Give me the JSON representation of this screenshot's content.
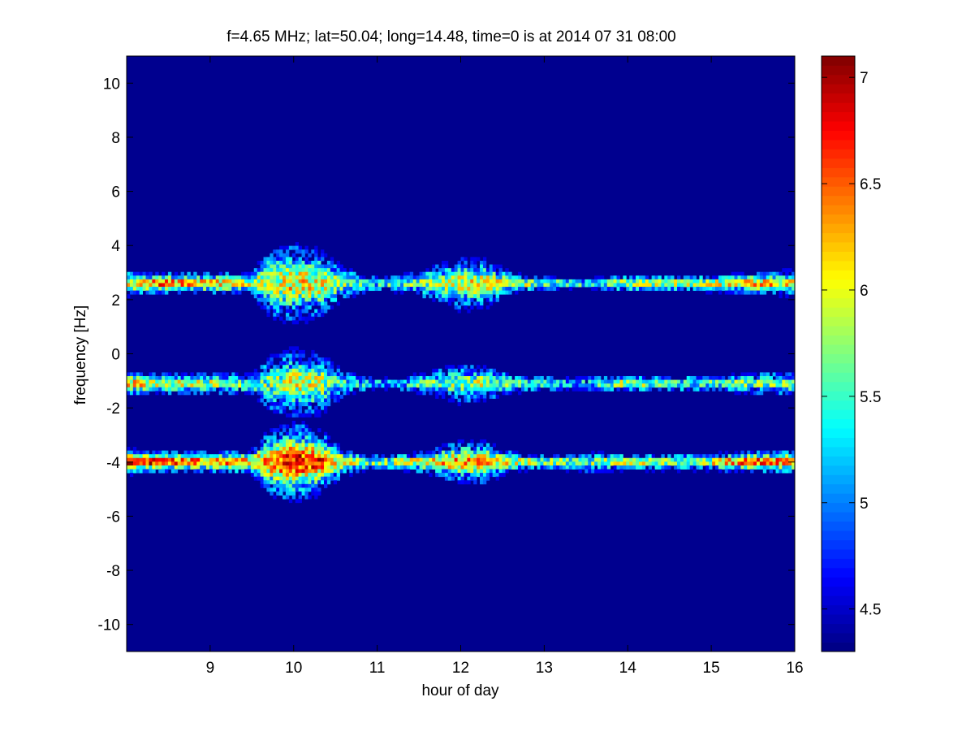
{
  "chart_data": {
    "type": "heatmap",
    "title": "f=4.65 MHz;  lat=50.04; long=14.48, time=0 is at 2014 07 31 08:00",
    "xlabel": "hour of day",
    "ylabel": "frequency [Hz]",
    "xlim": [
      8,
      16
    ],
    "ylim": [
      -11,
      11
    ],
    "x_ticks": [
      9,
      10,
      11,
      12,
      13,
      14,
      15,
      16
    ],
    "y_ticks": [
      10,
      8,
      6,
      4,
      2,
      0,
      -2,
      -4,
      -6,
      -8,
      -10
    ],
    "colorbar": {
      "colormap": "jet",
      "range": [
        4.3,
        7.1
      ],
      "ticks": [
        7,
        6.5,
        6,
        5.5,
        5,
        4.5
      ]
    },
    "grid": false,
    "background_value": 4.45,
    "bands": [
      {
        "center_freq": 2.6,
        "profile": [
          [
            8.0,
            6.2,
            0.35
          ],
          [
            8.5,
            6.5,
            0.3
          ],
          [
            9.0,
            6.3,
            0.3
          ],
          [
            9.5,
            6.0,
            0.3
          ],
          [
            9.7,
            5.8,
            1.0
          ],
          [
            10.0,
            6.1,
            1.1
          ],
          [
            10.3,
            6.0,
            1.0
          ],
          [
            10.6,
            5.6,
            0.5
          ],
          [
            11.0,
            5.3,
            0.2
          ],
          [
            11.5,
            5.7,
            0.35
          ],
          [
            12.0,
            5.9,
            0.8
          ],
          [
            12.3,
            6.0,
            0.7
          ],
          [
            12.6,
            5.8,
            0.3
          ],
          [
            13.0,
            5.7,
            0.2
          ],
          [
            13.5,
            5.4,
            0.15
          ],
          [
            14.0,
            5.9,
            0.25
          ],
          [
            14.5,
            5.8,
            0.25
          ],
          [
            15.0,
            5.9,
            0.25
          ],
          [
            15.5,
            6.3,
            0.3
          ],
          [
            16.0,
            6.0,
            0.4
          ]
        ]
      },
      {
        "center_freq": -1.1,
        "profile": [
          [
            8.0,
            6.2,
            0.35
          ],
          [
            8.5,
            5.9,
            0.3
          ],
          [
            9.0,
            5.8,
            0.3
          ],
          [
            9.5,
            5.6,
            0.3
          ],
          [
            9.7,
            5.6,
            0.8
          ],
          [
            10.0,
            5.9,
            1.0
          ],
          [
            10.3,
            5.9,
            0.9
          ],
          [
            10.6,
            5.4,
            0.4
          ],
          [
            11.0,
            5.2,
            0.15
          ],
          [
            11.5,
            5.4,
            0.3
          ],
          [
            12.0,
            5.7,
            0.6
          ],
          [
            12.3,
            5.8,
            0.5
          ],
          [
            12.6,
            5.5,
            0.3
          ],
          [
            13.0,
            5.4,
            0.2
          ],
          [
            13.5,
            5.2,
            0.2
          ],
          [
            14.0,
            5.9,
            0.25
          ],
          [
            14.5,
            5.5,
            0.25
          ],
          [
            15.0,
            5.5,
            0.25
          ],
          [
            15.5,
            5.7,
            0.3
          ],
          [
            16.0,
            5.7,
            0.35
          ]
        ]
      },
      {
        "center_freq": -4.0,
        "profile": [
          [
            8.0,
            6.9,
            0.35
          ],
          [
            8.5,
            6.6,
            0.3
          ],
          [
            9.0,
            6.4,
            0.3
          ],
          [
            9.5,
            6.2,
            0.35
          ],
          [
            9.7,
            6.3,
            0.9
          ],
          [
            10.0,
            6.8,
            1.1
          ],
          [
            10.3,
            6.6,
            0.9
          ],
          [
            10.6,
            5.9,
            0.4
          ],
          [
            11.0,
            5.6,
            0.2
          ],
          [
            11.5,
            6.0,
            0.3
          ],
          [
            12.0,
            6.3,
            0.6
          ],
          [
            12.3,
            6.2,
            0.6
          ],
          [
            12.6,
            5.9,
            0.3
          ],
          [
            13.0,
            5.8,
            0.2
          ],
          [
            13.5,
            5.6,
            0.3
          ],
          [
            14.0,
            5.9,
            0.25
          ],
          [
            14.5,
            5.8,
            0.25
          ],
          [
            15.0,
            6.0,
            0.25
          ],
          [
            15.5,
            6.7,
            0.3
          ],
          [
            16.0,
            6.2,
            0.35
          ]
        ]
      }
    ]
  }
}
